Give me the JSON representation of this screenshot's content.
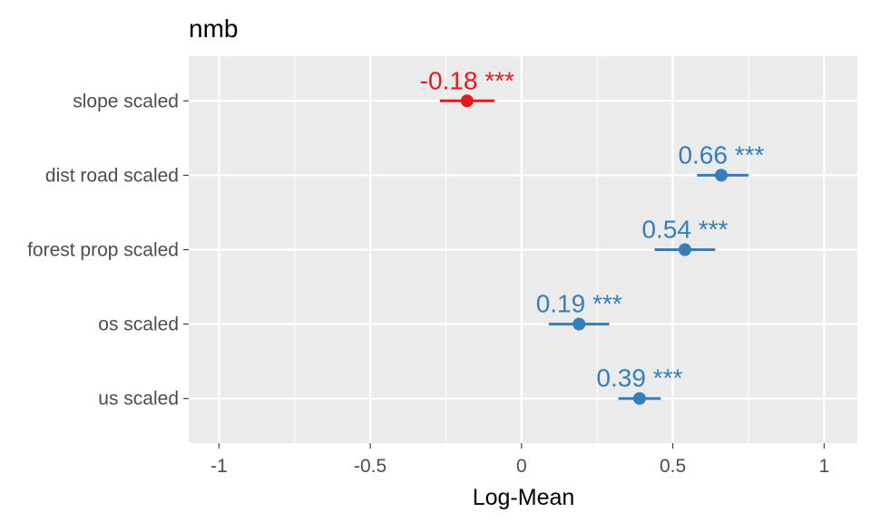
{
  "chart_data": {
    "type": "scatter",
    "title": "nmb",
    "xlabel": "Log-Mean",
    "ylabel": "",
    "xlim": [
      -1.1,
      1.11
    ],
    "x_ticks": [
      -1,
      -0.5,
      0,
      0.5,
      1
    ],
    "x_tick_labels": [
      "-1",
      "-0.5",
      "0",
      "0.5",
      "1"
    ],
    "grid": true,
    "legend": "none",
    "colors": {
      "positive": "#377eb8",
      "negative": "#e41a1c",
      "panel": "#ebebeb",
      "grid": "#ffffff"
    },
    "points": [
      {
        "term": "slope scaled",
        "estimate": -0.18,
        "conf_low": -0.27,
        "conf_high": -0.09,
        "label": "-0.18 ***",
        "sign": "negative"
      },
      {
        "term": "dist road scaled",
        "estimate": 0.66,
        "conf_low": 0.58,
        "conf_high": 0.75,
        "label": "0.66 ***",
        "sign": "positive"
      },
      {
        "term": "forest prop scaled",
        "estimate": 0.54,
        "conf_low": 0.44,
        "conf_high": 0.64,
        "label": "0.54 ***",
        "sign": "positive"
      },
      {
        "term": "os scaled",
        "estimate": 0.19,
        "conf_low": 0.09,
        "conf_high": 0.29,
        "label": "0.19 ***",
        "sign": "positive"
      },
      {
        "term": "us scaled",
        "estimate": 0.39,
        "conf_low": 0.32,
        "conf_high": 0.46,
        "label": "0.39 ***",
        "sign": "positive"
      }
    ]
  }
}
